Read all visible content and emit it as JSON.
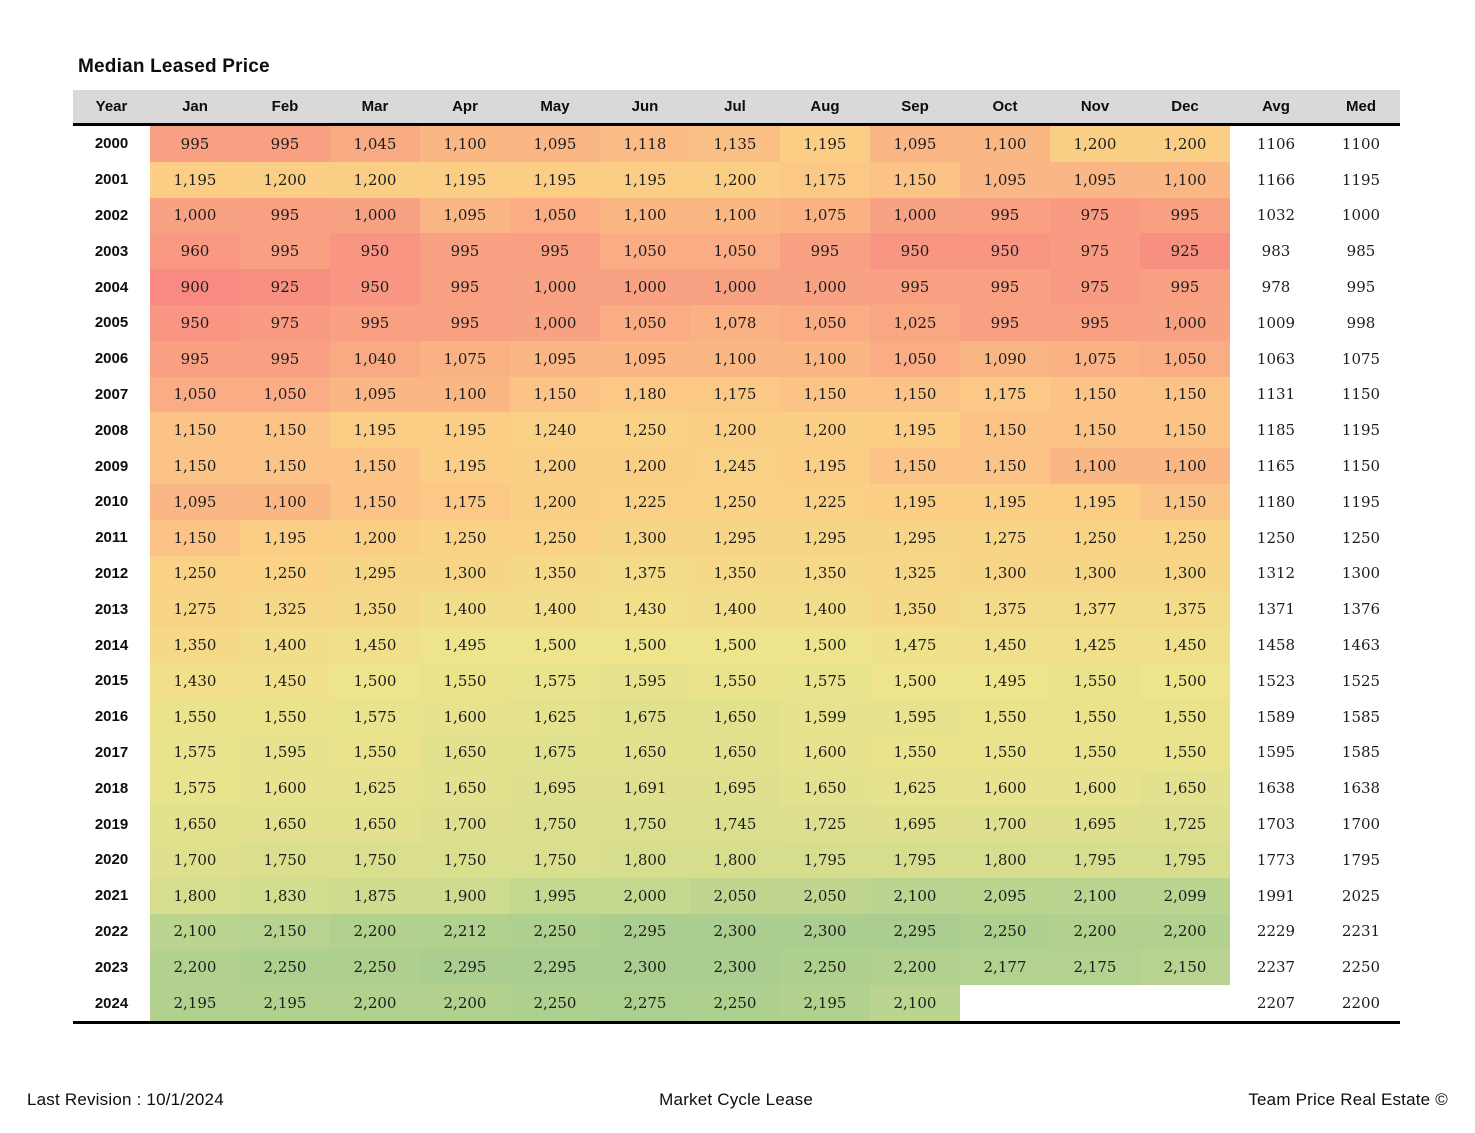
{
  "page": {
    "title": "Median Leased Price"
  },
  "footer": {
    "left": "Last Revision : 10/1/2024",
    "center": "Market Cycle Lease",
    "right": "Team Price Real Estate ©"
  },
  "colors": {
    "header_bg": "#D9D9D9",
    "border": "#000000"
  },
  "chart_data": {
    "type": "heatmap",
    "title": "Median Leased Price",
    "columns": [
      "Year",
      "Jan",
      "Feb",
      "Mar",
      "Apr",
      "May",
      "Jun",
      "Jul",
      "Aug",
      "Sep",
      "Oct",
      "Nov",
      "Dec",
      "Avg",
      "Med"
    ],
    "color_scale": {
      "stops": [
        {
          "value": 900,
          "color": "#F88A82"
        },
        {
          "value": 1200,
          "color": "#FBCE85"
        },
        {
          "value": 1500,
          "color": "#EEE48C"
        },
        {
          "value": 1800,
          "color": "#D6DE8E"
        },
        {
          "value": 2300,
          "color": "#A9CE8F"
        }
      ]
    },
    "rows": [
      {
        "year": "2000",
        "values": [
          995,
          995,
          1045,
          1100,
          1095,
          1118,
          1135,
          1195,
          1095,
          1100,
          1200,
          1200
        ],
        "avg": 1106,
        "med": 1100
      },
      {
        "year": "2001",
        "values": [
          1195,
          1200,
          1200,
          1195,
          1195,
          1195,
          1200,
          1175,
          1150,
          1095,
          1095,
          1100
        ],
        "avg": 1166,
        "med": 1195
      },
      {
        "year": "2002",
        "values": [
          1000,
          995,
          1000,
          1095,
          1050,
          1100,
          1100,
          1075,
          1000,
          995,
          975,
          995
        ],
        "avg": 1032,
        "med": 1000
      },
      {
        "year": "2003",
        "values": [
          960,
          995,
          950,
          995,
          995,
          1050,
          1050,
          995,
          950,
          950,
          975,
          925
        ],
        "avg": 983,
        "med": 985
      },
      {
        "year": "2004",
        "values": [
          900,
          925,
          950,
          995,
          1000,
          1000,
          1000,
          1000,
          995,
          995,
          975,
          995
        ],
        "avg": 978,
        "med": 995
      },
      {
        "year": "2005",
        "values": [
          950,
          975,
          995,
          995,
          1000,
          1050,
          1078,
          1050,
          1025,
          995,
          995,
          1000
        ],
        "avg": 1009,
        "med": 998
      },
      {
        "year": "2006",
        "values": [
          995,
          995,
          1040,
          1075,
          1095,
          1095,
          1100,
          1100,
          1050,
          1090,
          1075,
          1050
        ],
        "avg": 1063,
        "med": 1075
      },
      {
        "year": "2007",
        "values": [
          1050,
          1050,
          1095,
          1100,
          1150,
          1180,
          1175,
          1150,
          1150,
          1175,
          1150,
          1150
        ],
        "avg": 1131,
        "med": 1150
      },
      {
        "year": "2008",
        "values": [
          1150,
          1150,
          1195,
          1195,
          1240,
          1250,
          1200,
          1200,
          1195,
          1150,
          1150,
          1150
        ],
        "avg": 1185,
        "med": 1195
      },
      {
        "year": "2009",
        "values": [
          1150,
          1150,
          1150,
          1195,
          1200,
          1200,
          1245,
          1195,
          1150,
          1150,
          1100,
          1100
        ],
        "avg": 1165,
        "med": 1150
      },
      {
        "year": "2010",
        "values": [
          1095,
          1100,
          1150,
          1175,
          1200,
          1225,
          1250,
          1225,
          1195,
          1195,
          1195,
          1150
        ],
        "avg": 1180,
        "med": 1195
      },
      {
        "year": "2011",
        "values": [
          1150,
          1195,
          1200,
          1250,
          1250,
          1300,
          1295,
          1295,
          1295,
          1275,
          1250,
          1250
        ],
        "avg": 1250,
        "med": 1250
      },
      {
        "year": "2012",
        "values": [
          1250,
          1250,
          1295,
          1300,
          1350,
          1375,
          1350,
          1350,
          1325,
          1300,
          1300,
          1300
        ],
        "avg": 1312,
        "med": 1300
      },
      {
        "year": "2013",
        "values": [
          1275,
          1325,
          1350,
          1400,
          1400,
          1430,
          1400,
          1400,
          1350,
          1375,
          1377,
          1375
        ],
        "avg": 1371,
        "med": 1376
      },
      {
        "year": "2014",
        "values": [
          1350,
          1400,
          1450,
          1495,
          1500,
          1500,
          1500,
          1500,
          1475,
          1450,
          1425,
          1450
        ],
        "avg": 1458,
        "med": 1463
      },
      {
        "year": "2015",
        "values": [
          1430,
          1450,
          1500,
          1550,
          1575,
          1595,
          1550,
          1575,
          1500,
          1495,
          1550,
          1500
        ],
        "avg": 1523,
        "med": 1525
      },
      {
        "year": "2016",
        "values": [
          1550,
          1550,
          1575,
          1600,
          1625,
          1675,
          1650,
          1599,
          1595,
          1550,
          1550,
          1550
        ],
        "avg": 1589,
        "med": 1585
      },
      {
        "year": "2017",
        "values": [
          1575,
          1595,
          1550,
          1650,
          1675,
          1650,
          1650,
          1600,
          1550,
          1550,
          1550,
          1550
        ],
        "avg": 1595,
        "med": 1585
      },
      {
        "year": "2018",
        "values": [
          1575,
          1600,
          1625,
          1650,
          1695,
          1691,
          1695,
          1650,
          1625,
          1600,
          1600,
          1650
        ],
        "avg": 1638,
        "med": 1638
      },
      {
        "year": "2019",
        "values": [
          1650,
          1650,
          1650,
          1700,
          1750,
          1750,
          1745,
          1725,
          1695,
          1700,
          1695,
          1725
        ],
        "avg": 1703,
        "med": 1700
      },
      {
        "year": "2020",
        "values": [
          1700,
          1750,
          1750,
          1750,
          1750,
          1800,
          1800,
          1795,
          1795,
          1800,
          1795,
          1795
        ],
        "avg": 1773,
        "med": 1795
      },
      {
        "year": "2021",
        "values": [
          1800,
          1830,
          1875,
          1900,
          1995,
          2000,
          2050,
          2050,
          2100,
          2095,
          2100,
          2099
        ],
        "avg": 1991,
        "med": 2025
      },
      {
        "year": "2022",
        "values": [
          2100,
          2150,
          2200,
          2212,
          2250,
          2295,
          2300,
          2300,
          2295,
          2250,
          2200,
          2200
        ],
        "avg": 2229,
        "med": 2231
      },
      {
        "year": "2023",
        "values": [
          2200,
          2250,
          2250,
          2295,
          2295,
          2300,
          2300,
          2250,
          2200,
          2177,
          2175,
          2150
        ],
        "avg": 2237,
        "med": 2250
      },
      {
        "year": "2024",
        "values": [
          2195,
          2195,
          2200,
          2200,
          2250,
          2275,
          2250,
          2195,
          2100,
          null,
          null,
          null
        ],
        "avg": 2207,
        "med": 2200
      }
    ]
  }
}
